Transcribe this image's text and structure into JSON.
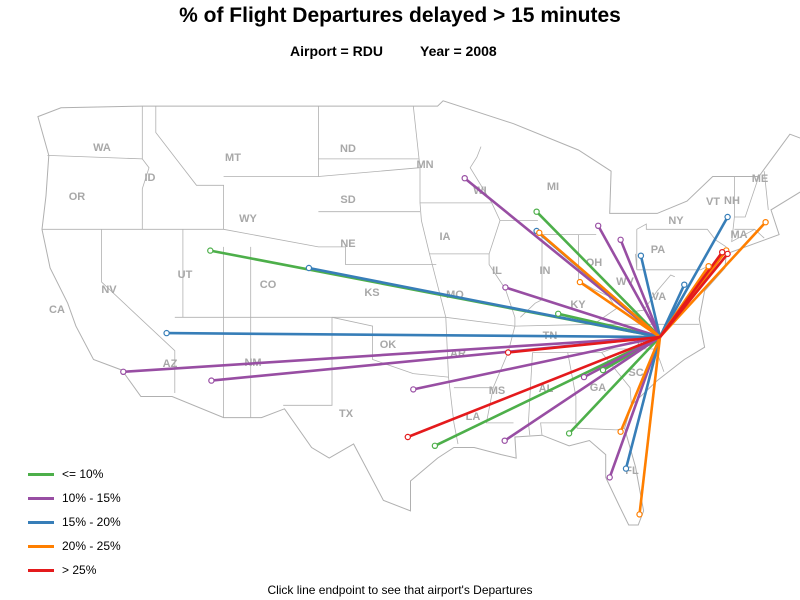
{
  "title": "% of Flight Departures delayed > 15 minutes",
  "subtitle": {
    "airport": "Airport = RDU",
    "year": "Year = 2008"
  },
  "footer": "Click line endpoint to see that airport's Departures",
  "colors": {
    "c1": "#4daf4a",
    "c2": "#984ea3",
    "c3": "#377eb8",
    "c4": "#ff7f00",
    "c5": "#e41a1c"
  },
  "legend": [
    {
      "label": "<= 10%",
      "cat": "c1"
    },
    {
      "label": "10% - 15%",
      "cat": "c2"
    },
    {
      "label": "15% - 20%",
      "cat": "c3"
    },
    {
      "label": "20% - 25%",
      "cat": "c4"
    },
    {
      "label": "> 25%",
      "cat": "c5"
    }
  ],
  "state_labels": [
    "WA",
    "OR",
    "CA",
    "NV",
    "ID",
    "MT",
    "WY",
    "UT",
    "CO",
    "AZ",
    "NM",
    "ND",
    "SD",
    "NE",
    "KS",
    "OK",
    "TX",
    "MN",
    "IA",
    "MO",
    "AR",
    "LA",
    "WI",
    "IL",
    "MI",
    "IN",
    "OH",
    "KY",
    "TN",
    "MS",
    "AL",
    "GA",
    "FL",
    "SC",
    "NC",
    "VA",
    "WV",
    "PA",
    "NY",
    "VT",
    "NH",
    "ME",
    "MA"
  ],
  "origin": {
    "lon": -78.79,
    "lat": 35.88
  },
  "routes": [
    {
      "lon": -111.98,
      "lat": 40.79,
      "cat": "c1"
    },
    {
      "lon": -87.9,
      "lat": 43.0,
      "cat": "c1"
    },
    {
      "lon": -85.5,
      "lat": 30.4,
      "cat": "c1"
    },
    {
      "lon": -95.4,
      "lat": 29.7,
      "cat": "c1"
    },
    {
      "lon": -83.0,
      "lat": 34.0,
      "cat": "c1"
    },
    {
      "lon": -86.3,
      "lat": 37.2,
      "cat": "c1"
    },
    {
      "lon": -93.2,
      "lat": 44.9,
      "cat": "c2"
    },
    {
      "lon": -118.4,
      "lat": 33.9,
      "cat": "c2"
    },
    {
      "lon": -111.9,
      "lat": 33.4,
      "cat": "c2"
    },
    {
      "lon": -97.0,
      "lat": 32.9,
      "cat": "c2"
    },
    {
      "lon": -90.2,
      "lat": 38.7,
      "cat": "c2"
    },
    {
      "lon": -90.25,
      "lat": 29.99,
      "cat": "c2"
    },
    {
      "lon": -83.35,
      "lat": 42.2,
      "cat": "c2"
    },
    {
      "lon": -81.7,
      "lat": 41.4,
      "cat": "c2"
    },
    {
      "lon": -82.5,
      "lat": 27.9,
      "cat": "c2"
    },
    {
      "lon": -84.4,
      "lat": 33.6,
      "cat": "c2"
    },
    {
      "lon": -104.7,
      "lat": 39.8,
      "cat": "c3"
    },
    {
      "lon": -115.2,
      "lat": 36.1,
      "cat": "c3"
    },
    {
      "lon": -87.9,
      "lat": 41.9,
      "cat": "c3"
    },
    {
      "lon": -81.3,
      "lat": 28.4,
      "cat": "c3"
    },
    {
      "lon": -77.0,
      "lat": 38.85,
      "cat": "c3"
    },
    {
      "lon": -73.8,
      "lat": 42.7,
      "cat": "c3"
    },
    {
      "lon": -80.2,
      "lat": 40.5,
      "cat": "c3"
    },
    {
      "lon": -87.7,
      "lat": 41.8,
      "cat": "c4"
    },
    {
      "lon": -80.3,
      "lat": 25.8,
      "cat": "c4"
    },
    {
      "lon": -81.7,
      "lat": 30.5,
      "cat": "c4"
    },
    {
      "lon": -71.0,
      "lat": 42.4,
      "cat": "c4"
    },
    {
      "lon": -73.9,
      "lat": 40.8,
      "cat": "c4"
    },
    {
      "lon": -75.2,
      "lat": 39.9,
      "cat": "c4"
    },
    {
      "lon": -84.7,
      "lat": 39.0,
      "cat": "c4"
    },
    {
      "lon": -97.4,
      "lat": 30.2,
      "cat": "c5"
    },
    {
      "lon": -90.0,
      "lat": 35.0,
      "cat": "c5"
    },
    {
      "lon": -74.2,
      "lat": 40.7,
      "cat": "c5"
    },
    {
      "lon": -73.8,
      "lat": 40.6,
      "cat": "c5"
    }
  ]
}
